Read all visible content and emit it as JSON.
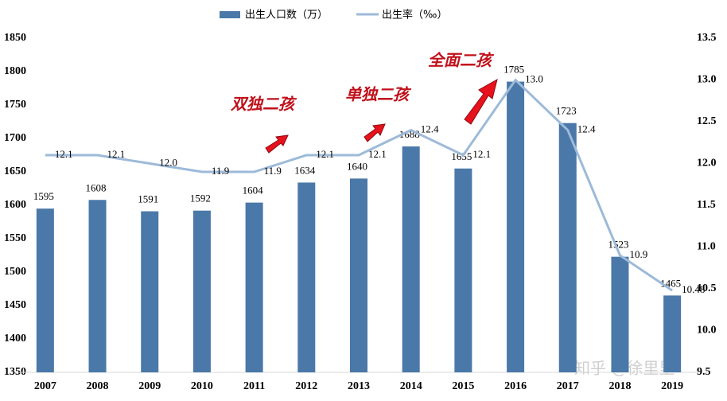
{
  "chart_data": {
    "type": "bar",
    "categories": [
      "2007",
      "2008",
      "2009",
      "2010",
      "2011",
      "2012",
      "2013",
      "2014",
      "2015",
      "2016",
      "2017",
      "2018",
      "2019"
    ],
    "series": [
      {
        "name": "出生人口数（万）",
        "type": "bar",
        "color": "#4a78a8",
        "values": [
          1595,
          1608,
          1591,
          1592,
          1604,
          1634,
          1640,
          1688,
          1655,
          1785,
          1723,
          1523,
          1465
        ]
      },
      {
        "name": "出生率（‰）",
        "type": "line",
        "color": "#9dbad9",
        "axis": "y2",
        "values": [
          12.1,
          12.1,
          12.0,
          11.9,
          11.9,
          12.1,
          12.1,
          12.4,
          12.1,
          13.0,
          12.4,
          10.9,
          10.48
        ],
        "value_labels": [
          "12.1",
          "12.1",
          "12.0",
          "11.9",
          "11.9",
          "12.1",
          "12.1",
          "12.4",
          "12.1",
          "13.0",
          "12.4",
          "10.9",
          "10.48"
        ]
      }
    ],
    "ylim": [
      1350,
      1850
    ],
    "yticks": [
      1350,
      1400,
      1450,
      1500,
      1550,
      1600,
      1650,
      1700,
      1750,
      1800,
      1850
    ],
    "y2lim": [
      9.5,
      13.5
    ],
    "y2ticks": [
      9.5,
      {
        "value": 10,
        "label": "10.0"
      },
      10.5,
      {
        "value": 11,
        "label": "11.0"
      },
      11.5,
      {
        "value": 12,
        "label": "12.0"
      },
      12.5,
      {
        "value": 13,
        "label": "13.0"
      },
      13.5
    ],
    "grid": false,
    "legend": "top",
    "annotations": [
      "双独二孩",
      "单独二孩",
      "全面二孩",
      "知乎 @徐里里"
    ]
  }
}
